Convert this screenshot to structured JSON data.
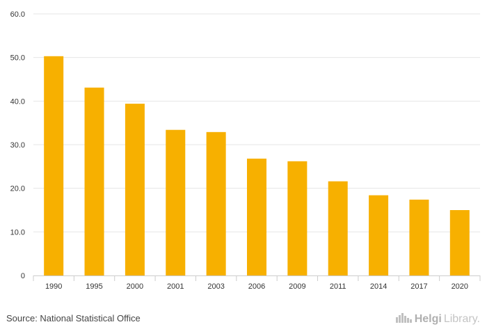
{
  "colors": {
    "bar": "#f7b000",
    "grid": "#e6e6e6",
    "axis": "#cccccc"
  },
  "chart_data": {
    "type": "bar",
    "title": "",
    "xlabel": "",
    "ylabel": "",
    "categories": [
      "1990",
      "1995",
      "2000",
      "2001",
      "2003",
      "2006",
      "2009",
      "2011",
      "2014",
      "2017",
      "2020"
    ],
    "values": [
      50.3,
      43.1,
      39.4,
      33.4,
      32.9,
      26.8,
      26.2,
      21.6,
      18.4,
      17.4,
      15.0
    ],
    "ylim": [
      0,
      60
    ],
    "yticks": [
      "0",
      "10.0",
      "20.0",
      "30.0",
      "40.0",
      "50.0",
      "60.0"
    ],
    "grid": true,
    "legend": "none"
  },
  "footer": {
    "source": "Source: National Statistical Office",
    "logo_bold": "Helgi",
    "logo_rest": "Library.",
    "logo_icon": "city-skyline-icon"
  }
}
